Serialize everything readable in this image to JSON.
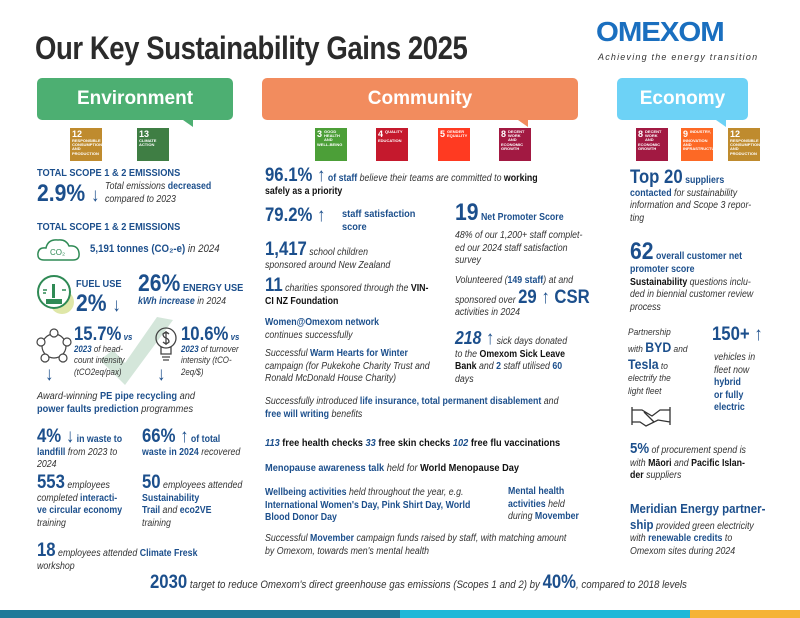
{
  "header": {
    "title": "Our Key Sustainability Gains 2025",
    "logo": "OMEXOM",
    "tagline": "Achieving the energy transition"
  },
  "colors": {
    "environment": "#4daf72",
    "community": "#f28c5e",
    "economy": "#6dd2f6",
    "text_blue": "#1c4f8c"
  },
  "sections": {
    "environment": "Environment",
    "community": "Community",
    "economy": "Economy"
  },
  "sdg": {
    "environment": [
      {
        "num": "12",
        "label": "RESPONSIBLE CONSUMPTION AND PRODUCTION",
        "color": "#bf8b2e"
      },
      {
        "num": "13",
        "label": "CLIMATE ACTION",
        "color": "#3f7e44"
      }
    ],
    "community": [
      {
        "num": "3",
        "label": "GOOD HEALTH AND WELL-BEING",
        "color": "#4c9f38"
      },
      {
        "num": "4",
        "label": "QUALITY EDUCATION",
        "color": "#c5192d"
      },
      {
        "num": "5",
        "label": "GENDER EQUALITY",
        "color": "#ff3a21"
      },
      {
        "num": "8",
        "label": "DECENT WORK AND ECONOMIC GROWTH",
        "color": "#a21942"
      }
    ],
    "economy": [
      {
        "num": "8",
        "label": "DECENT WORK AND ECONOMIC GROWTH",
        "color": "#a21942"
      },
      {
        "num": "9",
        "label": "INDUSTRY, INNOVATION AND INFRASTRUCTURE",
        "color": "#fd6925"
      },
      {
        "num": "12",
        "label": "RESPONSIBLE CONSUMPTION AND PRODUCTION",
        "color": "#bf8b2e"
      }
    ]
  },
  "env": {
    "h1": [
      [
        "TOTAL SCOPE 1 & 2 EMISSIONS",
        "h"
      ]
    ],
    "e1num": [
      [
        "2.9% ",
        "N"
      ],
      [
        "↓",
        "a"
      ]
    ],
    "e1txt": [
      [
        "Total emissions ",
        "i"
      ],
      [
        "decreased",
        "b"
      ],
      [
        "\ncompared to 2023",
        "i"
      ]
    ],
    "h2": [
      [
        "TOTAL SCOPE 1 & 2 EMISSIONS",
        "h"
      ]
    ],
    "co2_icon_label": "CO₂",
    "tonnes": [
      [
        "5,191  tonnes (CO₂-e) ",
        "b"
      ],
      [
        "in 2024",
        "i"
      ]
    ],
    "fuel": [
      [
        "FUEL USE",
        "h"
      ],
      [
        "\n",
        " "
      ],
      [
        "2% ",
        "N"
      ],
      [
        "↓",
        "a"
      ]
    ],
    "energy": [
      [
        "26%",
        "N"
      ],
      [
        " ENERGY USE",
        "h"
      ],
      [
        "\nkWh increase",
        "ib"
      ],
      [
        " in 2024",
        "i"
      ]
    ],
    "headcount": [
      [
        "15.7%",
        "n"
      ],
      [
        " vs\n2023",
        "ib"
      ],
      [
        " of head-\ncount intensity\n(tCO2eq/pax)",
        "i"
      ]
    ],
    "turnover": [
      [
        "10.6%",
        "n"
      ],
      [
        " vs\n2023",
        "ib"
      ],
      [
        " of turnover\nintensity (tCO-\n2eq/$)",
        "i"
      ]
    ],
    "award": [
      [
        "Award-winning ",
        "i"
      ],
      [
        "PE pipe recycling",
        "b"
      ],
      [
        " and\n",
        "i"
      ],
      [
        "power faults prediction",
        "b"
      ],
      [
        " programmes",
        "i"
      ]
    ],
    "waste": [
      [
        "4% ",
        "n"
      ],
      [
        "↓",
        "a"
      ],
      [
        " in waste to\n",
        "b"
      ],
      [
        "landfill",
        "b"
      ],
      [
        " from 2023 to\n2024",
        "i"
      ]
    ],
    "recovered": [
      [
        "66% ",
        "n"
      ],
      [
        "↑",
        "a"
      ],
      [
        " of total\n",
        "b"
      ],
      [
        "waste in 2024",
        "b"
      ],
      [
        " recovered",
        "i"
      ]
    ],
    "circular": [
      [
        "553",
        "n"
      ],
      [
        " employees\ncompleted ",
        "i"
      ],
      [
        "interacti-\nve circular economy",
        "b"
      ],
      [
        "\ntraining",
        "i"
      ]
    ],
    "trail": [
      [
        "50",
        "n"
      ],
      [
        " employees attended\n",
        "i"
      ],
      [
        "Sustainability\nTrail",
        "b"
      ],
      [
        " and ",
        "i"
      ],
      [
        "eco2VE",
        "b"
      ],
      [
        "\ntraining",
        "i"
      ]
    ],
    "fresk": [
      [
        "18",
        "n"
      ],
      [
        "  employees attended ",
        "i"
      ],
      [
        "Climate Fresk",
        "b"
      ],
      [
        "\n       workshop",
        "i"
      ]
    ]
  },
  "com": {
    "safety": [
      [
        "96.1% ",
        "n"
      ],
      [
        "↑",
        "a"
      ],
      [
        " of staff",
        "b"
      ],
      [
        " believe their teams are committed to ",
        "i"
      ],
      [
        "working\nsafely as a priority",
        "k"
      ]
    ],
    "satisfaction": [
      [
        "79.2% ",
        "n"
      ],
      [
        "↑",
        "a"
      ]
    ],
    "satisfaction_txt": [
      [
        "staff satisfaction\nscore",
        "b"
      ]
    ],
    "school": [
      [
        "1,417",
        "n"
      ],
      [
        " school children\nsponsored around New Zealand",
        "i"
      ]
    ],
    "charities": [
      [
        "11",
        "n"
      ],
      [
        " charities sponsored through the ",
        "i"
      ],
      [
        "VIN-\nCI NZ Foundation",
        "k"
      ]
    ],
    "women": [
      [
        "Women@Omexom network",
        "b"
      ],
      [
        "\ncontinues successfully",
        "i"
      ]
    ],
    "warm": [
      [
        "Successful ",
        "i"
      ],
      [
        "Warm Hearts for Winter",
        "b"
      ],
      [
        "\ncampaign (for Pukekohe Charity Trust and\nRonald McDonald House Charity)",
        "i"
      ]
    ],
    "nps": [
      [
        "19",
        "N"
      ],
      [
        "  Net Promoter Score",
        "b"
      ]
    ],
    "survey": [
      [
        "48% of our 1,200+ staff complet-\ned our 2024 staff satisfaction\nsurvey",
        "i"
      ]
    ],
    "volunteer": [
      [
        "Volunteered (",
        "i"
      ],
      [
        "149 staff",
        "b"
      ],
      [
        ") at and\nsponsored over ",
        "i"
      ],
      [
        "29 ",
        "n"
      ],
      [
        "↑",
        "a"
      ],
      [
        " CSR",
        "n"
      ],
      [
        "\nactivities in 2024",
        "i"
      ]
    ],
    "sick": [
      [
        "218 ",
        "in"
      ],
      [
        "↑",
        "a"
      ],
      [
        " sick days donated\nto the ",
        "i"
      ],
      [
        "Omexom Sick Leave\nBank",
        "k"
      ],
      [
        " and ",
        "i"
      ],
      [
        "2",
        "b"
      ],
      [
        " staff utilised ",
        "i"
      ],
      [
        "60",
        "b"
      ],
      [
        "\ndays",
        "i"
      ]
    ],
    "insurance": [
      [
        "Successfully introduced ",
        "i"
      ],
      [
        "life insurance, total permanent disablement",
        "b"
      ],
      [
        " and\n",
        "i"
      ],
      [
        "free will writing",
        "b"
      ],
      [
        " benefits",
        "i"
      ]
    ],
    "checks": [
      [
        "113",
        "ib"
      ],
      [
        " free health checks  ",
        "k"
      ],
      [
        "33",
        "ib"
      ],
      [
        " free skin checks  ",
        "k"
      ],
      [
        "102",
        "ib"
      ],
      [
        " free flu vaccinations",
        "k"
      ]
    ],
    "menopause": [
      [
        "Menopause awareness talk",
        "b"
      ],
      [
        " held for ",
        "i"
      ],
      [
        "World Menopause Day",
        "k"
      ]
    ],
    "wellbeing": [
      [
        "Wellbeing activities",
        "b"
      ],
      [
        " held throughout the year, e.g.\n",
        "i"
      ],
      [
        "International Women's Day, Pink Shirt Day, World\nBlood Donor Day",
        "b"
      ]
    ],
    "mental": [
      [
        "Mental health\nactivities",
        "b"
      ],
      [
        " held\nduring ",
        "i"
      ],
      [
        "Movember",
        "b"
      ]
    ],
    "movember": [
      [
        "Successful ",
        "i"
      ],
      [
        "Movember",
        "b"
      ],
      [
        "  campaign funds raised by staff, with matching amount\nby Omexom, towards men's mental health",
        "i"
      ]
    ]
  },
  "eco": {
    "suppliers": [
      [
        "Top 20",
        "n"
      ],
      [
        " suppliers\ncontacted",
        "b"
      ],
      [
        " for sustainability\ninformation and Scope 3 repor-\nting",
        "i"
      ]
    ],
    "nps": [
      [
        "62",
        "N"
      ],
      [
        " overall customer net\npromoter score",
        "b"
      ],
      [
        "\n",
        "i"
      ],
      [
        "Sustainability",
        "k"
      ],
      [
        " questions inclu-\nded in biennial customer review\nprocess",
        "i"
      ]
    ],
    "partnership": [
      [
        "Partnership\nwith ",
        "i"
      ],
      [
        "BYD",
        "n"
      ],
      [
        " and\n",
        "i"
      ],
      [
        "Tesla",
        "n"
      ],
      [
        " to\nelectrify the\nlight fleet",
        "i"
      ]
    ],
    "vehicles": [
      [
        "150+ ",
        "n"
      ],
      [
        "↑",
        "a"
      ]
    ],
    "vehicles_txt": [
      [
        "vehicles in\nfleet now\n",
        "i"
      ],
      [
        "hybrid\nor fully\nelectric",
        "b"
      ]
    ],
    "procurement": [
      [
        "5%",
        "n"
      ],
      [
        " of procurement spend is\nwith ",
        "i"
      ],
      [
        "Māori",
        "k"
      ],
      [
        " and ",
        "i"
      ],
      [
        "Pacific Islan-\nder",
        "k"
      ],
      [
        " suppliers",
        "i"
      ]
    ],
    "meridian": [
      [
        "Meridian Energy partner-\nship",
        "n"
      ],
      [
        " provided green electricity\nwith ",
        "i"
      ],
      [
        "renewable credits",
        "b"
      ],
      [
        " to\nOmexom sites during 2024",
        "i"
      ]
    ]
  },
  "footer": [
    [
      "2030",
      "n"
    ],
    [
      " target to reduce Omexom's direct greenhouse gas emissions (Scopes 1 and 2) by ",
      "i"
    ],
    [
      "40%",
      "n"
    ],
    [
      ", compared to 2018 levels",
      "i"
    ]
  ]
}
